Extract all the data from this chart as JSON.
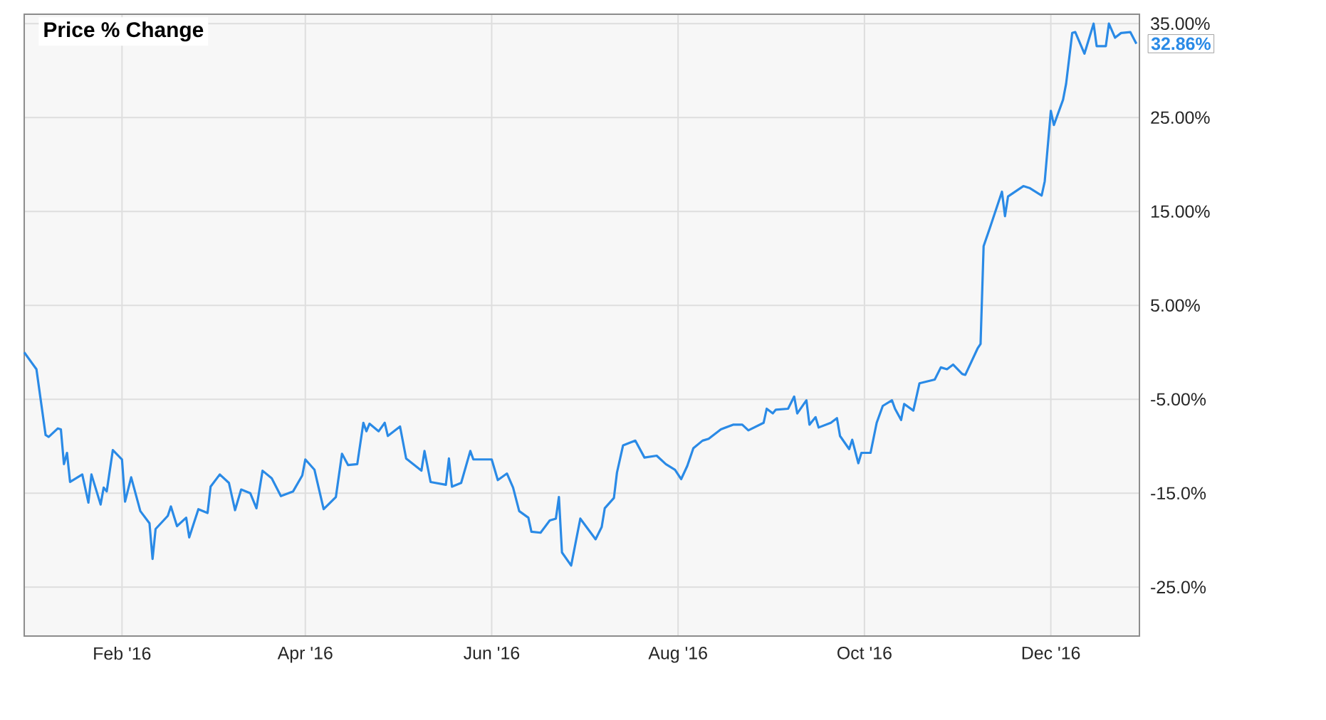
{
  "chart_data": {
    "type": "line",
    "title": "Price % Change",
    "x": [
      "2015-12-31",
      "2016-01-04",
      "2016-01-07",
      "2016-01-08",
      "2016-01-11",
      "2016-01-12",
      "2016-01-13",
      "2016-01-14",
      "2016-01-15",
      "2016-01-19",
      "2016-01-21",
      "2016-01-22",
      "2016-01-25",
      "2016-01-26",
      "2016-01-27",
      "2016-01-29",
      "2016-02-01",
      "2016-02-02",
      "2016-02-04",
      "2016-02-07",
      "2016-02-10",
      "2016-02-11",
      "2016-02-12",
      "2016-02-16",
      "2016-02-17",
      "2016-02-19",
      "2016-02-22",
      "2016-02-23",
      "2016-02-26",
      "2016-02-29",
      "2016-03-01",
      "2016-03-04",
      "2016-03-07",
      "2016-03-09",
      "2016-03-11",
      "2016-03-14",
      "2016-03-16",
      "2016-03-18",
      "2016-03-21",
      "2016-03-24",
      "2016-03-28",
      "2016-03-31",
      "2016-04-01",
      "2016-04-04",
      "2016-04-05",
      "2016-04-07",
      "2016-04-11",
      "2016-04-13",
      "2016-04-15",
      "2016-04-18",
      "2016-04-20",
      "2016-04-21",
      "2016-04-22",
      "2016-04-25",
      "2016-04-27",
      "2016-04-28",
      "2016-05-02",
      "2016-05-04",
      "2016-05-09",
      "2016-05-10",
      "2016-05-12",
      "2016-05-17",
      "2016-05-18",
      "2016-05-19",
      "2016-05-22",
      "2016-05-25",
      "2016-05-26",
      "2016-06-01",
      "2016-06-03",
      "2016-06-06",
      "2016-06-08",
      "2016-06-10",
      "2016-06-13",
      "2016-06-14",
      "2016-06-17",
      "2016-06-20",
      "2016-06-22",
      "2016-06-23",
      "2016-06-24",
      "2016-06-27",
      "2016-06-30",
      "2016-07-05",
      "2016-07-07",
      "2016-07-08",
      "2016-07-11",
      "2016-07-12",
      "2016-07-14",
      "2016-07-18",
      "2016-07-21",
      "2016-07-25",
      "2016-07-28",
      "2016-07-31",
      "2016-08-02",
      "2016-08-04",
      "2016-08-06",
      "2016-08-09",
      "2016-08-11",
      "2016-08-15",
      "2016-08-19",
      "2016-08-22",
      "2016-08-24",
      "2016-08-29",
      "2016-08-30",
      "2016-09-01",
      "2016-09-02",
      "2016-09-06",
      "2016-09-08",
      "2016-09-09",
      "2016-09-12",
      "2016-09-13",
      "2016-09-15",
      "2016-09-16",
      "2016-09-20",
      "2016-09-22",
      "2016-09-23",
      "2016-09-26",
      "2016-09-27",
      "2016-09-29",
      "2016-09-30",
      "2016-10-03",
      "2016-10-05",
      "2016-10-07",
      "2016-10-10",
      "2016-10-11",
      "2016-10-13",
      "2016-10-14",
      "2016-10-17",
      "2016-10-19",
      "2016-10-24",
      "2016-10-26",
      "2016-10-28",
      "2016-10-30",
      "2016-11-02",
      "2016-11-03",
      "2016-11-07",
      "2016-11-08",
      "2016-11-09",
      "2016-11-11",
      "2016-11-15",
      "2016-11-16",
      "2016-11-17",
      "2016-11-22",
      "2016-11-24",
      "2016-11-28",
      "2016-11-29",
      "2016-12-01",
      "2016-12-02",
      "2016-12-05",
      "2016-12-06",
      "2016-12-08",
      "2016-12-09",
      "2016-12-12",
      "2016-12-15",
      "2016-12-16",
      "2016-12-19",
      "2016-12-20",
      "2016-12-22",
      "2016-12-24",
      "2016-12-27",
      "2016-12-29"
    ],
    "series": [
      {
        "color": "#2a8ae6",
        "values": [
          0.0,
          -1.8,
          -8.8,
          -9.0,
          -8.1,
          -8.2,
          -11.9,
          -10.7,
          -13.8,
          -13.0,
          -16.0,
          -13.0,
          -16.2,
          -14.4,
          -14.8,
          -10.4,
          -11.4,
          -15.9,
          -13.3,
          -16.9,
          -18.2,
          -22.0,
          -18.8,
          -17.4,
          -16.4,
          -18.5,
          -17.6,
          -19.7,
          -16.7,
          -17.1,
          -14.3,
          -13.0,
          -13.9,
          -16.8,
          -14.6,
          -15.0,
          -16.6,
          -12.6,
          -13.4,
          -15.3,
          -14.8,
          -13.1,
          -11.4,
          -12.5,
          -13.9,
          -16.7,
          -15.4,
          -10.8,
          -12.0,
          -11.9,
          -7.5,
          -8.4,
          -7.6,
          -8.4,
          -7.5,
          -8.9,
          -7.9,
          -11.3,
          -12.6,
          -10.5,
          -13.8,
          -14.1,
          -11.3,
          -14.3,
          -13.9,
          -10.5,
          -11.4,
          -11.4,
          -13.6,
          -12.9,
          -14.4,
          -16.9,
          -17.6,
          -19.1,
          -19.2,
          -17.9,
          -17.7,
          -15.4,
          -21.3,
          -22.7,
          -17.7,
          -19.9,
          -18.6,
          -16.6,
          -15.5,
          -12.8,
          -9.9,
          -9.4,
          -11.2,
          -11.0,
          -11.9,
          -12.5,
          -13.5,
          -12.1,
          -10.2,
          -9.4,
          -9.2,
          -8.2,
          -7.7,
          -7.7,
          -8.3,
          -7.5,
          -6.0,
          -6.5,
          -6.1,
          -6.0,
          -4.7,
          -6.5,
          -5.1,
          -7.7,
          -6.9,
          -8.0,
          -7.5,
          -7.0,
          -8.9,
          -10.3,
          -9.3,
          -11.8,
          -10.7,
          -10.7,
          -7.5,
          -5.7,
          -5.1,
          -6.0,
          -7.2,
          -5.5,
          -6.2,
          -3.3,
          -2.9,
          -1.6,
          -1.8,
          -1.3,
          -2.3,
          -2.4,
          0.4,
          0.9,
          11.3,
          13.2,
          17.1,
          14.5,
          16.6,
          17.7,
          17.5,
          16.7,
          18.2,
          25.7,
          24.2,
          26.9,
          28.6,
          34.0,
          34.1,
          31.8,
          35.0,
          32.6,
          32.6,
          35.0,
          33.5,
          34.0,
          34.1,
          32.86
        ]
      }
    ],
    "xlim": [
      "2015-12-31",
      "2016-12-30"
    ],
    "xticks": [
      {
        "value": "2016-02-01",
        "label": "Feb '16"
      },
      {
        "value": "2016-04-01",
        "label": "Apr '16"
      },
      {
        "value": "2016-06-01",
        "label": "Jun '16"
      },
      {
        "value": "2016-08-01",
        "label": "Aug '16"
      },
      {
        "value": "2016-10-01",
        "label": "Oct '16"
      },
      {
        "value": "2016-12-01",
        "label": "Dec '16"
      }
    ],
    "ylim": [
      -30.2,
      36
    ],
    "yticks": [
      {
        "value": -25,
        "label": "-25.0%"
      },
      {
        "value": -15,
        "label": "-15.0%"
      },
      {
        "value": -5,
        "label": "-5.00%"
      },
      {
        "value": 5,
        "label": "5.00%"
      },
      {
        "value": 15,
        "label": "15.00%"
      },
      {
        "value": 25,
        "label": "25.00%"
      },
      {
        "value": 35,
        "label": "35.00%"
      }
    ],
    "grid": true,
    "annotations": [
      {
        "text": "32.86%",
        "x": "2016-12-29",
        "y": 32.86
      }
    ]
  }
}
